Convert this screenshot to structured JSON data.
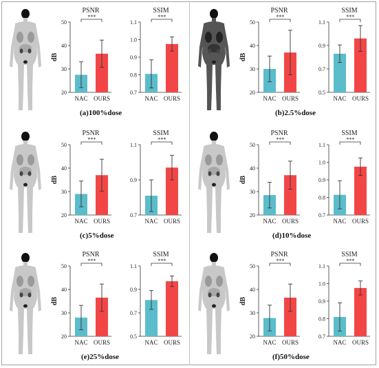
{
  "figure": {
    "colors": {
      "nac": "#5bbccb",
      "ours": "#f24646",
      "axis": "#333333",
      "error": "#333333"
    },
    "significance_marker": "***",
    "panels": [
      {
        "id": "a",
        "caption": "(a)100%dose",
        "charts": [
          {
            "type": "bar",
            "title": "PSNR",
            "ylabel": "dB",
            "categories": [
              "NAC",
              "OURS"
            ],
            "values": [
              27.5,
              36.5
            ],
            "errors": [
              5.5,
              5.8
            ],
            "ylim": [
              20,
              50
            ],
            "yticks": [
              "20",
              "30",
              "40",
              "50"
            ],
            "significance": "***"
          },
          {
            "type": "bar",
            "title": "SSIM",
            "ylabel": "",
            "categories": [
              "NAC",
              "OURS"
            ],
            "values": [
              0.805,
              0.975
            ],
            "errors": [
              0.08,
              0.04
            ],
            "ylim": [
              0.7,
              1.1
            ],
            "yticks": [
              "0.7",
              "0.8",
              "0.9",
              "1.0",
              "1.1"
            ],
            "significance": "***"
          }
        ]
      },
      {
        "id": "b",
        "caption": "(b)2.5%dose",
        "charts": [
          {
            "type": "bar",
            "title": "PSNR",
            "ylabel": "dB",
            "categories": [
              "NAC",
              "OURS"
            ],
            "values": [
              30.0,
              37.0
            ],
            "errors": [
              5.5,
              9.5
            ],
            "ylim": [
              20,
              50
            ],
            "yticks": [
              "20",
              "30",
              "40",
              "50"
            ],
            "significance": "***"
          },
          {
            "type": "bar",
            "title": "SSIM",
            "ylabel": "",
            "categories": [
              "NAC",
              "OURS"
            ],
            "values": [
              0.83,
              0.96
            ],
            "errors": [
              0.075,
              0.11
            ],
            "ylim": [
              0.5,
              1.1
            ],
            "yticks": [
              "0.5",
              "0.7",
              "0.9",
              "1.1"
            ],
            "significance": "***"
          }
        ]
      },
      {
        "id": "c",
        "caption": "(c)5%dose",
        "charts": [
          {
            "type": "bar",
            "title": "PSNR",
            "ylabel": "dB",
            "categories": [
              "NAC",
              "OURS"
            ],
            "values": [
              29.0,
              37.0
            ],
            "errors": [
              5.5,
              6.8
            ],
            "ylim": [
              20,
              50
            ],
            "yticks": [
              "20",
              "30",
              "40",
              "50"
            ],
            "significance": "***"
          },
          {
            "type": "bar",
            "title": "SSIM",
            "ylabel": "",
            "categories": [
              "NAC",
              "OURS"
            ],
            "values": [
              0.81,
              0.97
            ],
            "errors": [
              0.09,
              0.07
            ],
            "ylim": [
              0.7,
              1.1
            ],
            "yticks": [
              "0.7",
              "0.9",
              "1.1"
            ],
            "significance": "***"
          }
        ]
      },
      {
        "id": "d",
        "caption": "(d)10%dose",
        "charts": [
          {
            "type": "bar",
            "title": "PSNR",
            "ylabel": "dB",
            "categories": [
              "NAC",
              "OURS"
            ],
            "values": [
              28.5,
              37.0
            ],
            "errors": [
              5.5,
              6.0
            ],
            "ylim": [
              20,
              50
            ],
            "yticks": [
              "20",
              "30",
              "40",
              "50"
            ],
            "significance": "***"
          },
          {
            "type": "bar",
            "title": "SSIM",
            "ylabel": "",
            "categories": [
              "NAC",
              "OURS"
            ],
            "values": [
              0.815,
              0.975
            ],
            "errors": [
              0.08,
              0.05
            ],
            "ylim": [
              0.7,
              1.1
            ],
            "yticks": [
              "0.7",
              "0.8",
              "0.9",
              "1.0",
              "1.1"
            ],
            "significance": "***"
          }
        ]
      },
      {
        "id": "e",
        "caption": "(e)25%dose",
        "charts": [
          {
            "type": "bar",
            "title": "PSNR",
            "ylabel": "dB",
            "categories": [
              "NAC",
              "OURS"
            ],
            "values": [
              28.0,
              36.5
            ],
            "errors": [
              5.2,
              5.8
            ],
            "ylim": [
              20,
              50
            ],
            "yticks": [
              "20",
              "30",
              "40",
              "50"
            ],
            "significance": "***"
          },
          {
            "type": "bar",
            "title": "SSIM",
            "ylabel": "",
            "categories": [
              "NAC",
              "OURS"
            ],
            "values": [
              0.81,
              0.97
            ],
            "errors": [
              0.08,
              0.045
            ],
            "ylim": [
              0.5,
              1.1
            ],
            "yticks": [
              "0.5",
              "0.7",
              "0.9",
              "1.1"
            ],
            "significance": "***"
          }
        ]
      },
      {
        "id": "f",
        "caption": "(f)50%dose",
        "charts": [
          {
            "type": "bar",
            "title": "PSNR",
            "ylabel": "dB",
            "categories": [
              "NAC",
              "OURS"
            ],
            "values": [
              27.8,
              36.5
            ],
            "errors": [
              5.5,
              5.8
            ],
            "ylim": [
              20,
              50
            ],
            "yticks": [
              "20",
              "30",
              "40",
              "50"
            ],
            "significance": "***"
          },
          {
            "type": "bar",
            "title": "SSIM",
            "ylabel": "",
            "categories": [
              "NAC",
              "OURS"
            ],
            "values": [
              0.81,
              0.975
            ],
            "errors": [
              0.08,
              0.04
            ],
            "ylim": [
              0.7,
              1.1
            ],
            "yticks": [
              "0.7",
              "0.8",
              "0.9",
              "1.0",
              "1.1"
            ],
            "significance": "***"
          }
        ]
      }
    ]
  },
  "chart_data": [
    {
      "type": "bar",
      "panel": "(a)100%dose",
      "title": "PSNR",
      "ylabel": "dB",
      "categories": [
        "NAC",
        "OURS"
      ],
      "values": [
        27.5,
        36.5
      ],
      "ylim": [
        20,
        50
      ]
    },
    {
      "type": "bar",
      "panel": "(a)100%dose",
      "title": "SSIM",
      "categories": [
        "NAC",
        "OURS"
      ],
      "values": [
        0.805,
        0.975
      ],
      "ylim": [
        0.7,
        1.1
      ]
    },
    {
      "type": "bar",
      "panel": "(b)2.5%dose",
      "title": "PSNR",
      "ylabel": "dB",
      "categories": [
        "NAC",
        "OURS"
      ],
      "values": [
        30.0,
        37.0
      ],
      "ylim": [
        20,
        50
      ]
    },
    {
      "type": "bar",
      "panel": "(b)2.5%dose",
      "title": "SSIM",
      "categories": [
        "NAC",
        "OURS"
      ],
      "values": [
        0.83,
        0.96
      ],
      "ylim": [
        0.5,
        1.1
      ]
    },
    {
      "type": "bar",
      "panel": "(c)5%dose",
      "title": "PSNR",
      "ylabel": "dB",
      "categories": [
        "NAC",
        "OURS"
      ],
      "values": [
        29.0,
        37.0
      ],
      "ylim": [
        20,
        50
      ]
    },
    {
      "type": "bar",
      "panel": "(c)5%dose",
      "title": "SSIM",
      "categories": [
        "NAC",
        "OURS"
      ],
      "values": [
        0.81,
        0.97
      ],
      "ylim": [
        0.7,
        1.1
      ]
    },
    {
      "type": "bar",
      "panel": "(d)10%dose",
      "title": "PSNR",
      "ylabel": "dB",
      "categories": [
        "NAC",
        "OURS"
      ],
      "values": [
        28.5,
        37.0
      ],
      "ylim": [
        20,
        50
      ]
    },
    {
      "type": "bar",
      "panel": "(d)10%dose",
      "title": "SSIM",
      "categories": [
        "NAC",
        "OURS"
      ],
      "values": [
        0.815,
        0.975
      ],
      "ylim": [
        0.7,
        1.1
      ]
    },
    {
      "type": "bar",
      "panel": "(e)25%dose",
      "title": "PSNR",
      "ylabel": "dB",
      "categories": [
        "NAC",
        "OURS"
      ],
      "values": [
        28.0,
        36.5
      ],
      "ylim": [
        20,
        50
      ]
    },
    {
      "type": "bar",
      "panel": "(e)25%dose",
      "title": "SSIM",
      "categories": [
        "NAC",
        "OURS"
      ],
      "values": [
        0.81,
        0.97
      ],
      "ylim": [
        0.5,
        1.1
      ]
    },
    {
      "type": "bar",
      "panel": "(f)50%dose",
      "title": "PSNR",
      "ylabel": "dB",
      "categories": [
        "NAC",
        "OURS"
      ],
      "values": [
        27.8,
        36.5
      ],
      "ylim": [
        20,
        50
      ]
    },
    {
      "type": "bar",
      "panel": "(f)50%dose",
      "title": "SSIM",
      "categories": [
        "NAC",
        "OURS"
      ],
      "values": [
        0.81,
        0.975
      ],
      "ylim": [
        0.7,
        1.1
      ]
    }
  ]
}
